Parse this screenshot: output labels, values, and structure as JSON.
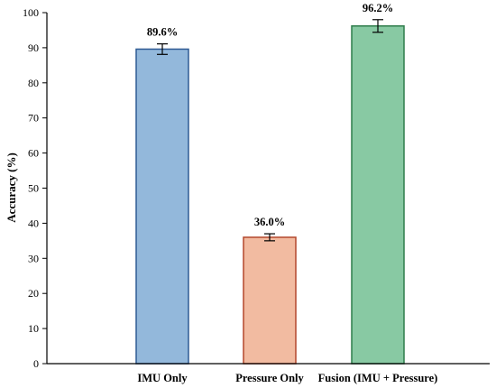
{
  "chart_data": {
    "type": "bar",
    "title": "",
    "xlabel": "",
    "ylabel": "Accuracy (%)",
    "ylim": [
      0,
      100
    ],
    "yticks": [
      0,
      10,
      20,
      30,
      40,
      50,
      60,
      70,
      80,
      90,
      100
    ],
    "grid": false,
    "legend": "none",
    "categories": [
      "IMU Only",
      "Pressure Only",
      "Fusion (IMU + Pressure)"
    ],
    "values": [
      89.6,
      36.0,
      96.2
    ],
    "data_labels": [
      "89.6%",
      "36.0%",
      "96.2%"
    ],
    "error_bars": [
      1.5,
      1.0,
      1.8
    ],
    "colors": {
      "fill": [
        "#93b8db",
        "#f2bba1",
        "#88c9a3"
      ],
      "stroke": [
        "#2f5b94",
        "#b3472c",
        "#2e7d4b"
      ],
      "axis": "#000000"
    }
  }
}
